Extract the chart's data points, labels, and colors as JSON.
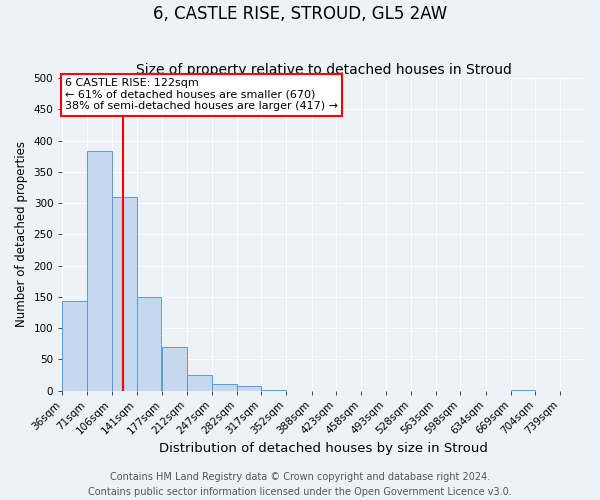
{
  "title": "6, CASTLE RISE, STROUD, GL5 2AW",
  "subtitle": "Size of property relative to detached houses in Stroud",
  "xlabel": "Distribution of detached houses by size in Stroud",
  "ylabel": "Number of detached properties",
  "bar_left_edges": [
    36,
    71,
    106,
    141,
    177,
    212,
    247,
    282,
    317,
    352,
    388,
    423,
    458,
    493,
    528,
    563,
    598,
    634,
    669,
    704,
    739
  ],
  "bar_heights": [
    144,
    383,
    310,
    150,
    70,
    25,
    10,
    7,
    1,
    0,
    0,
    0,
    0,
    0,
    0,
    0,
    0,
    0,
    1,
    0,
    0
  ],
  "bar_color": "#c5d8ed",
  "bar_edge_color": "#5b9bd5",
  "property_line_x": 122,
  "property_line_color": "red",
  "annotation_title": "6 CASTLE RISE: 122sqm",
  "annotation_line1": "← 61% of detached houses are smaller (670)",
  "annotation_line2": "38% of semi-detached houses are larger (417) →",
  "annotation_box_color": "red",
  "annotation_fill": "white",
  "ylim": [
    0,
    500
  ],
  "xlim_left": 36,
  "xlim_right": 774,
  "tick_labels": [
    "36sqm",
    "71sqm",
    "106sqm",
    "141sqm",
    "177sqm",
    "212sqm",
    "247sqm",
    "282sqm",
    "317sqm",
    "352sqm",
    "388sqm",
    "423sqm",
    "458sqm",
    "493sqm",
    "528sqm",
    "563sqm",
    "598sqm",
    "634sqm",
    "669sqm",
    "704sqm",
    "739sqm"
  ],
  "footer1": "Contains HM Land Registry data © Crown copyright and database right 2024.",
  "footer2": "Contains public sector information licensed under the Open Government Licence v3.0.",
  "bg_color": "#edf2f9",
  "grid_color": "#ffffff",
  "title_fontsize": 12,
  "subtitle_fontsize": 10,
  "xlabel_fontsize": 9.5,
  "ylabel_fontsize": 8.5,
  "annotation_fontsize": 8,
  "tick_fontsize": 7.5,
  "footer_fontsize": 7
}
